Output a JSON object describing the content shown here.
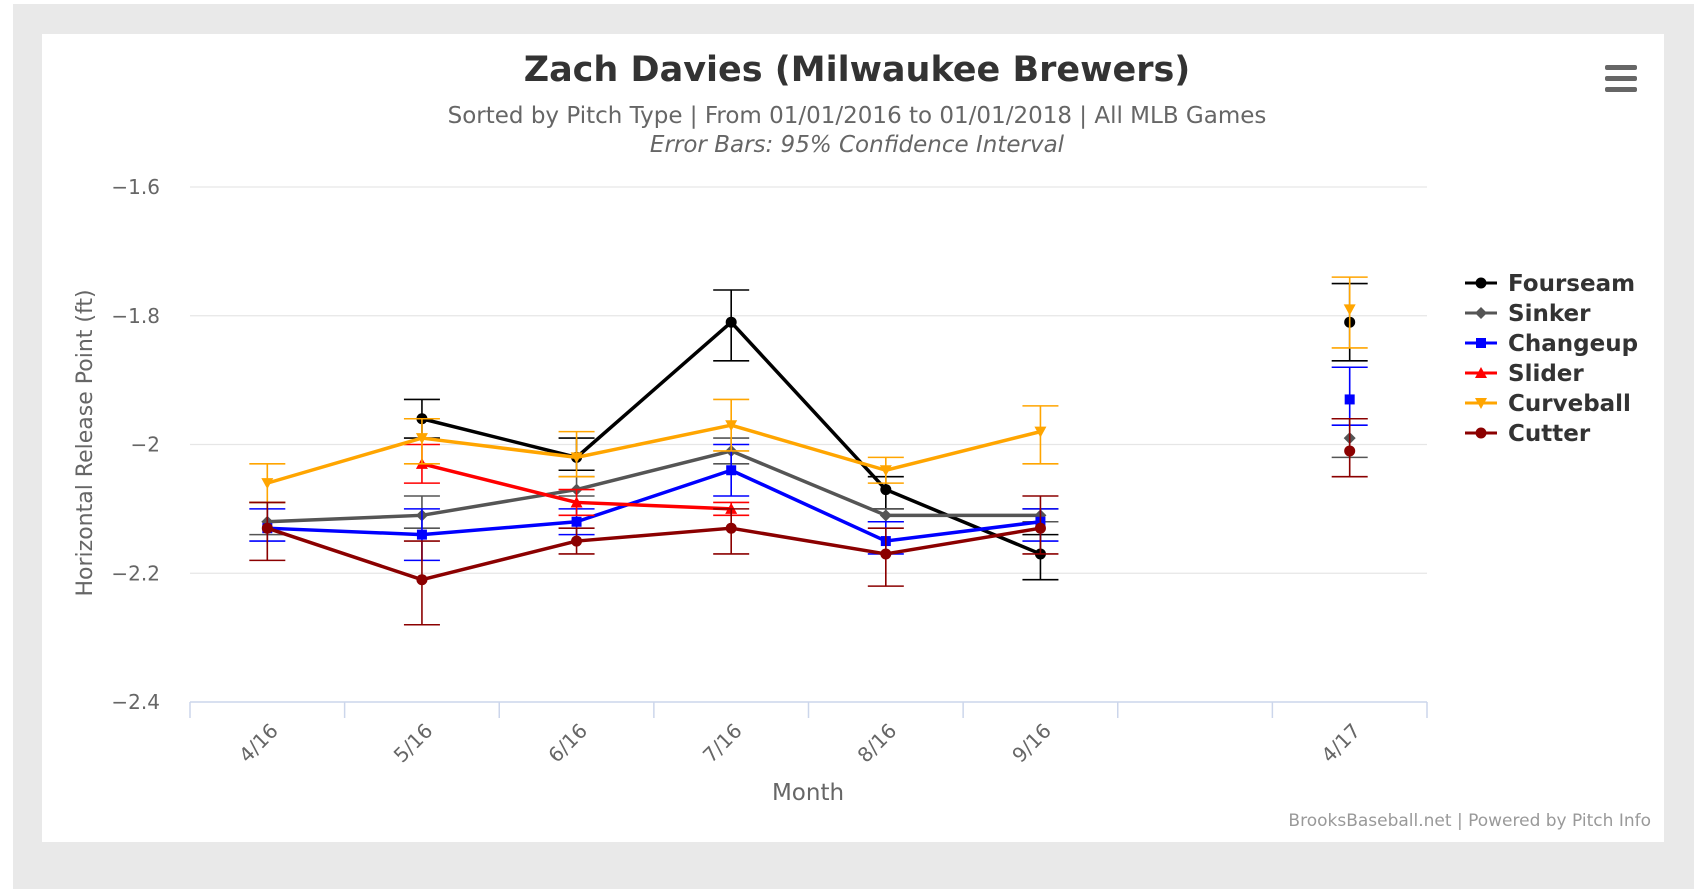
{
  "chart_data": {
    "type": "line",
    "title": "Zach Davies (Milwaukee Brewers)",
    "subtitle": "Sorted by Pitch Type | From 01/01/2016 to 01/01/2018 | All MLB Games",
    "subtitle2": "Error Bars: 95% Confidence Interval",
    "xlabel": "Month",
    "ylabel": "Horizontal Release Point (ft)",
    "credits": "BrooksBaseball.net | Powered by Pitch Info",
    "categories": [
      "4/16",
      "5/16",
      "6/16",
      "7/16",
      "8/16",
      "9/16",
      "",
      "4/17"
    ],
    "yticks": [
      "−1.6",
      "−1.8",
      "−2",
      "−2.2",
      "−2.4"
    ],
    "ylim": [
      -2.4,
      -1.6
    ],
    "grid": true,
    "legend_position": "right",
    "series": [
      {
        "name": "Fourseam",
        "color": "#000000",
        "marker": "circle",
        "values": [
          null,
          -1.96,
          -2.02,
          -1.81,
          -2.07,
          -2.17,
          null,
          -1.81
        ],
        "err": [
          null,
          [
            -1.93,
            -1.99
          ],
          [
            -1.99,
            -2.04
          ],
          [
            -1.76,
            -1.87
          ],
          [
            -2.05,
            -2.1
          ],
          [
            -2.14,
            -2.21
          ],
          null,
          [
            -1.75,
            -1.87
          ]
        ]
      },
      {
        "name": "Sinker",
        "color": "#555555",
        "marker": "diamond",
        "values": [
          -2.12,
          -2.11,
          -2.07,
          -2.01,
          -2.11,
          -2.11,
          null,
          -1.99
        ],
        "err": [
          [
            -2.09,
            -2.14
          ],
          [
            -2.08,
            -2.13
          ],
          [
            -2.05,
            -2.08
          ],
          [
            -1.99,
            -2.03
          ],
          [
            -2.1,
            -2.12
          ],
          [
            -2.1,
            -2.12
          ],
          null,
          [
            -1.96,
            -2.02
          ]
        ]
      },
      {
        "name": "Changeup",
        "color": "#0000ff",
        "marker": "square",
        "values": [
          -2.13,
          -2.14,
          -2.12,
          -2.04,
          -2.15,
          -2.12,
          null,
          -1.93
        ],
        "err": [
          [
            -2.1,
            -2.15
          ],
          [
            -2.1,
            -2.18
          ],
          [
            -2.1,
            -2.14
          ],
          [
            -2.0,
            -2.08
          ],
          [
            -2.12,
            -2.17
          ],
          [
            -2.1,
            -2.15
          ],
          null,
          [
            -1.88,
            -1.97
          ]
        ]
      },
      {
        "name": "Slider",
        "color": "#ff0000",
        "marker": "triangle",
        "values": [
          null,
          -2.03,
          -2.09,
          -2.1,
          null,
          null,
          null,
          null
        ],
        "err": [
          null,
          [
            -2.0,
            -2.06
          ],
          [
            -2.07,
            -2.11
          ],
          [
            -2.09,
            -2.11
          ],
          null,
          null,
          null,
          null
        ]
      },
      {
        "name": "Curveball",
        "color": "#ffa500",
        "marker": "triangle-down",
        "values": [
          -2.06,
          -1.99,
          -2.02,
          -1.97,
          -2.04,
          -1.98,
          null,
          -1.79
        ],
        "err": [
          [
            -2.03,
            -2.09
          ],
          [
            -1.96,
            -2.03
          ],
          [
            -1.98,
            -2.05
          ],
          [
            -1.93,
            -2.01
          ],
          [
            -2.02,
            -2.06
          ],
          [
            -1.94,
            -2.03
          ],
          null,
          [
            -1.74,
            -1.85
          ]
        ]
      },
      {
        "name": "Cutter",
        "color": "#8b0000",
        "marker": "circle",
        "values": [
          -2.13,
          -2.21,
          -2.15,
          -2.13,
          -2.17,
          -2.13,
          null,
          -2.01
        ],
        "err": [
          [
            -2.09,
            -2.18
          ],
          [
            -2.15,
            -2.28
          ],
          [
            -2.13,
            -2.17
          ],
          [
            -2.1,
            -2.17
          ],
          [
            -2.13,
            -2.22
          ],
          [
            -2.08,
            -2.17
          ],
          null,
          [
            -1.96,
            -2.05
          ]
        ]
      }
    ]
  }
}
